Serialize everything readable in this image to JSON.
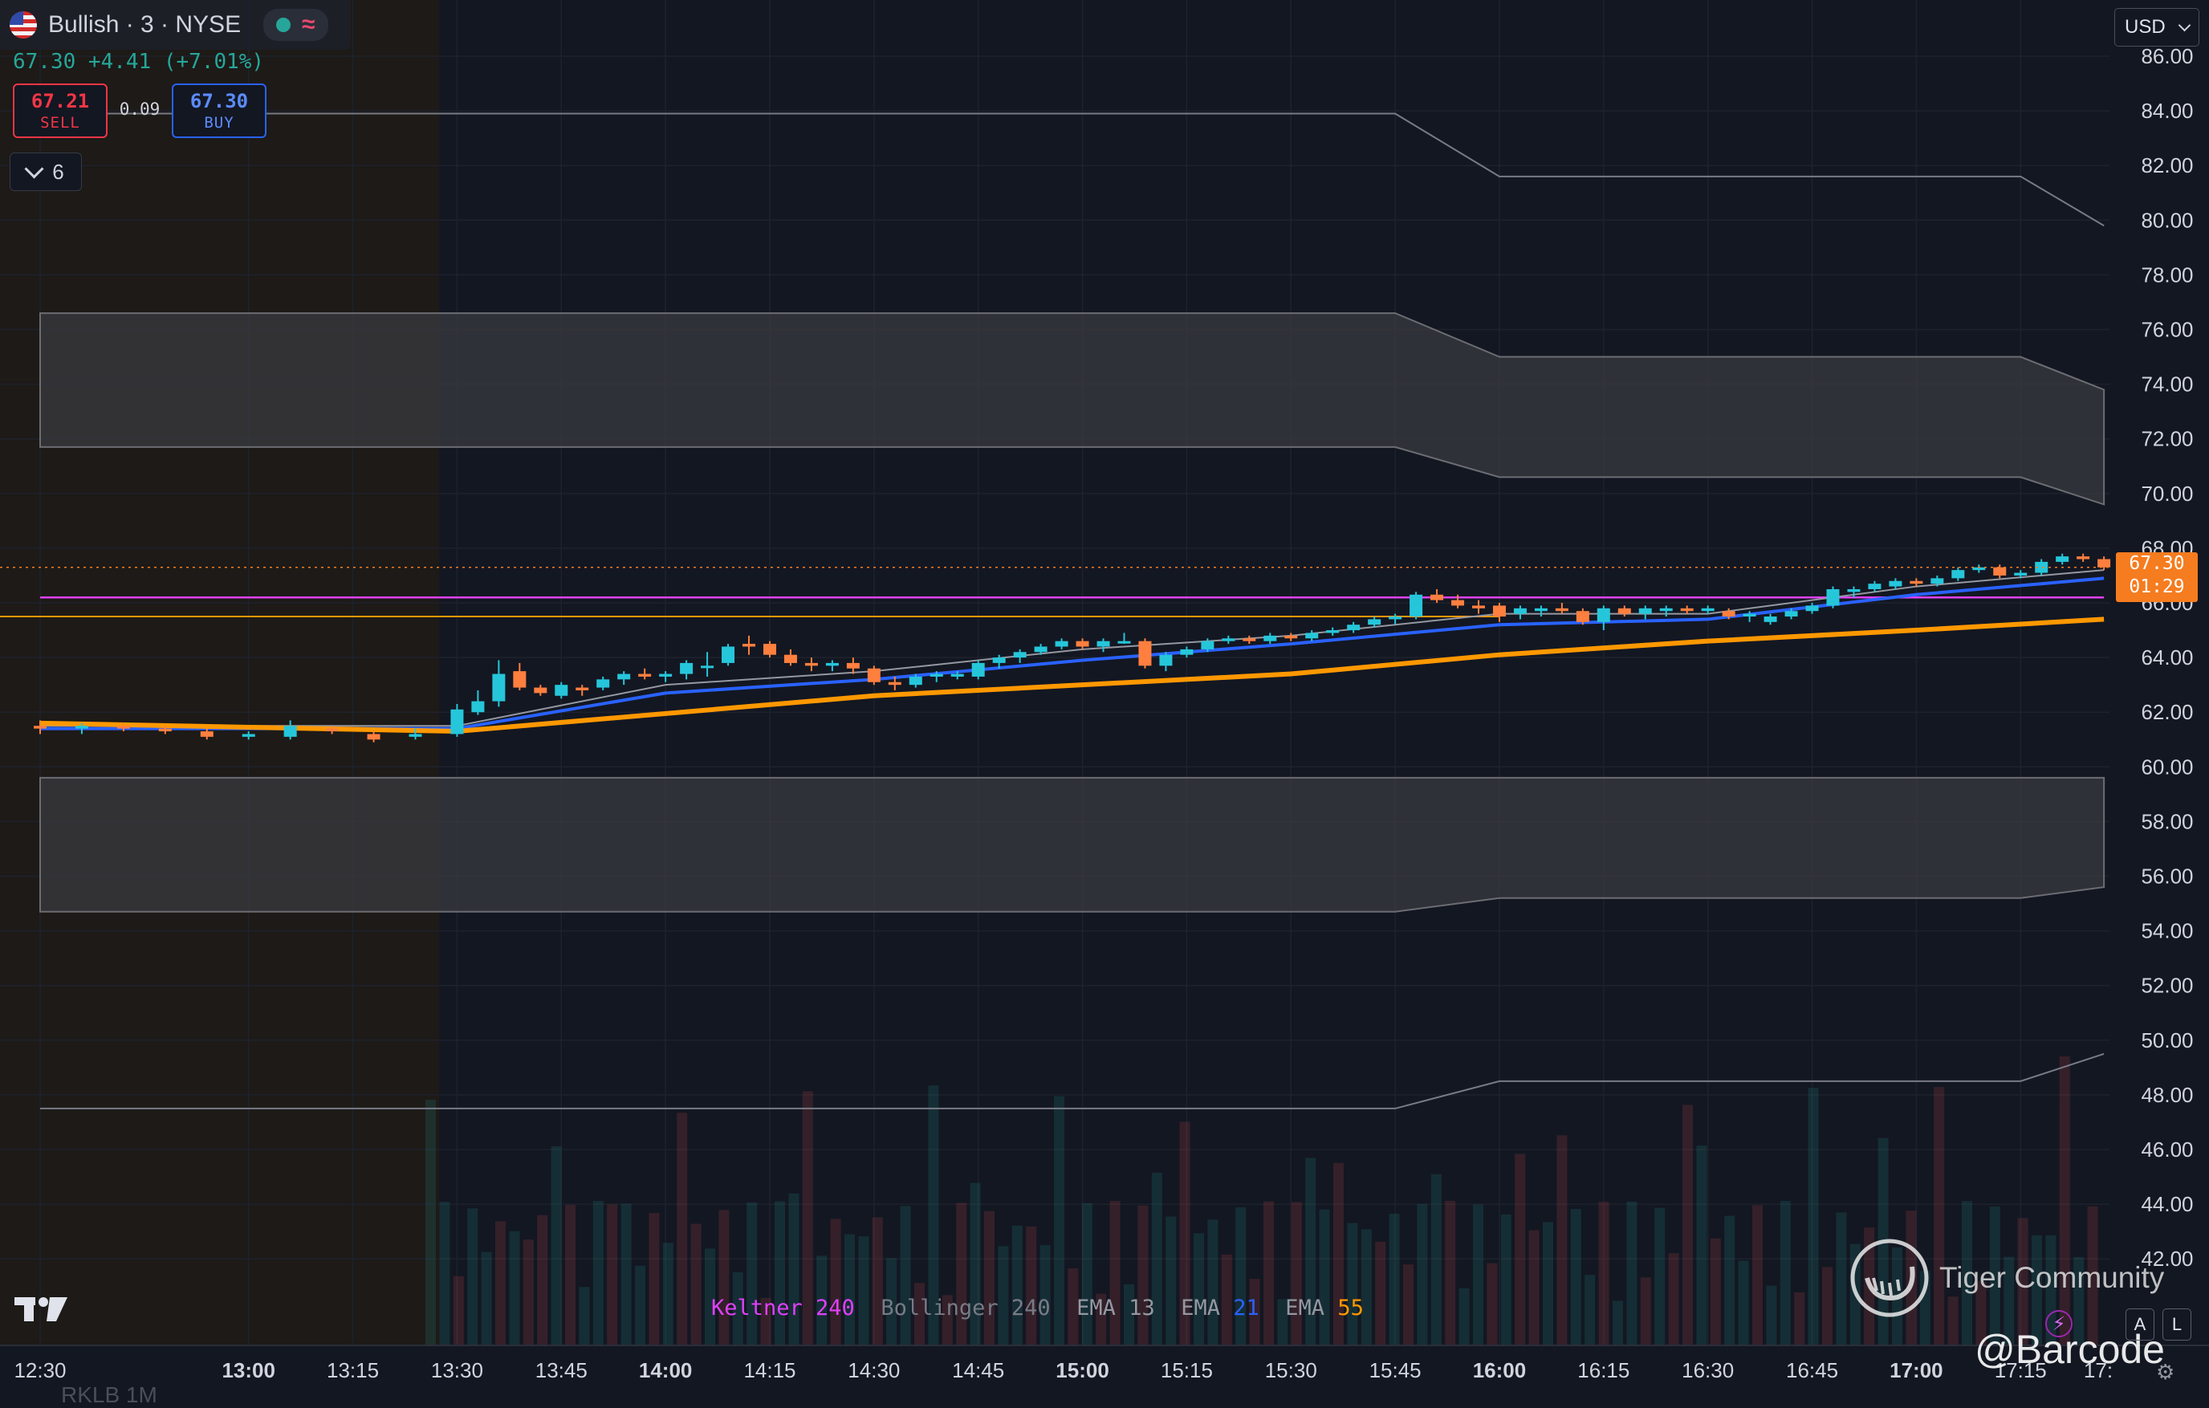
{
  "header": {
    "symbol_title": "Bullish · 3 · NYSE",
    "price_change": "67.30 +4.41 (+7.01%)"
  },
  "trade": {
    "sell_price": "67.21",
    "sell_label": "SELL",
    "spread": "0.09",
    "buy_price": "67.30",
    "buy_label": "BUY"
  },
  "indicators_toggle": {
    "count": "6"
  },
  "currency": {
    "selected": "USD"
  },
  "last_price_badge": {
    "price": "67.30",
    "countdown": "01:29"
  },
  "price_axis_labels": [
    "86.00",
    "84.00",
    "82.00",
    "80.00",
    "78.00",
    "76.00",
    "74.00",
    "72.00",
    "70.00",
    "68.00",
    "66.00",
    "64.00",
    "62.00",
    "60.00",
    "58.00",
    "56.00",
    "54.00",
    "52.00",
    "50.00",
    "48.00",
    "46.00",
    "44.00",
    "42.00"
  ],
  "time_axis_labels": [
    {
      "label": "12:30",
      "bold": false
    },
    {
      "label": "13:00",
      "bold": true
    },
    {
      "label": "13:15",
      "bold": false
    },
    {
      "label": "13:30",
      "bold": false
    },
    {
      "label": "13:45",
      "bold": false
    },
    {
      "label": "14:00",
      "bold": true
    },
    {
      "label": "14:15",
      "bold": false
    },
    {
      "label": "14:30",
      "bold": false
    },
    {
      "label": "14:45",
      "bold": false
    },
    {
      "label": "15:00",
      "bold": true
    },
    {
      "label": "15:15",
      "bold": false
    },
    {
      "label": "15:30",
      "bold": false
    },
    {
      "label": "15:45",
      "bold": false
    },
    {
      "label": "16:00",
      "bold": true
    },
    {
      "label": "16:15",
      "bold": false
    },
    {
      "label": "16:30",
      "bold": false
    },
    {
      "label": "16:45",
      "bold": false
    },
    {
      "label": "17:00",
      "bold": true
    },
    {
      "label": "17:15",
      "bold": false
    },
    {
      "label": "17:",
      "bold": false
    }
  ],
  "legend": [
    {
      "name": "Keltner",
      "param": "240",
      "name_color": "#e040fb",
      "param_color": "#e040fb"
    },
    {
      "name": "Bollinger",
      "param": "240",
      "name_color": "#787b86",
      "param_color": "#787b86"
    },
    {
      "name": "EMA",
      "param": "13",
      "name_color": "#9598a1",
      "param_color": "#9598a1"
    },
    {
      "name": "EMA",
      "param": "21",
      "name_color": "#9598a1",
      "param_color": "#2962ff"
    },
    {
      "name": "EMA",
      "param": "55",
      "name_color": "#9598a1",
      "param_color": "#ff9800"
    }
  ],
  "watermark": {
    "text": "Tiger Community",
    "handle": "@Barcode"
  },
  "bottom_partial_text": "RKLB          1M",
  "icons": {
    "status_indicator": "green-dot",
    "wave": "≈",
    "auto_scale": "A",
    "log_scale": "L",
    "lightning": "⚡",
    "settings": "⚙"
  },
  "colors": {
    "background": "#131722",
    "up": "#26c6da",
    "down": "#ff7f3f",
    "ema13": "#9598a1",
    "ema21": "#2962ff",
    "ema55": "#ff9800",
    "keltner": "#e040fb",
    "bollinger_band": "#3a3b40",
    "accent_price": "#f57c1f"
  },
  "chart_data": {
    "type": "candlestick",
    "interval": "3m",
    "title": "Bullish · 3 · NYSE",
    "y_range": [
      41,
      86.5
    ],
    "x_range": [
      "12:30",
      "17:25"
    ],
    "last_price": 67.3,
    "pre_session_shaded_until": "13:30",
    "candles": [
      {
        "t": "12:30",
        "o": 61.5,
        "h": 61.7,
        "l": 61.2,
        "c": 61.4
      },
      {
        "t": "12:36",
        "o": 61.4,
        "h": 61.6,
        "l": 61.2,
        "c": 61.5
      },
      {
        "t": "12:42",
        "o": 61.5,
        "h": 61.6,
        "l": 61.3,
        "c": 61.4
      },
      {
        "t": "12:48",
        "o": 61.4,
        "h": 61.5,
        "l": 61.2,
        "c": 61.3
      },
      {
        "t": "12:54",
        "o": 61.3,
        "h": 61.4,
        "l": 61.0,
        "c": 61.1
      },
      {
        "t": "13:00",
        "o": 61.1,
        "h": 61.3,
        "l": 61.0,
        "c": 61.2
      },
      {
        "t": "13:06",
        "o": 61.1,
        "h": 61.7,
        "l": 61.0,
        "c": 61.5
      },
      {
        "t": "13:12",
        "o": 61.4,
        "h": 61.5,
        "l": 61.2,
        "c": 61.3
      },
      {
        "t": "13:18",
        "o": 61.2,
        "h": 61.3,
        "l": 60.9,
        "c": 61.0
      },
      {
        "t": "13:24",
        "o": 61.1,
        "h": 61.4,
        "l": 61.0,
        "c": 61.2
      },
      {
        "t": "13:30",
        "o": 61.2,
        "h": 62.3,
        "l": 61.1,
        "c": 62.1
      },
      {
        "t": "13:33",
        "o": 62.0,
        "h": 62.8,
        "l": 61.9,
        "c": 62.4
      },
      {
        "t": "13:36",
        "o": 62.4,
        "h": 63.9,
        "l": 62.2,
        "c": 63.4
      },
      {
        "t": "13:39",
        "o": 63.5,
        "h": 63.8,
        "l": 62.8,
        "c": 62.9
      },
      {
        "t": "13:42",
        "o": 62.9,
        "h": 63.0,
        "l": 62.6,
        "c": 62.7
      },
      {
        "t": "13:45",
        "o": 62.6,
        "h": 63.1,
        "l": 62.5,
        "c": 63.0
      },
      {
        "t": "13:48",
        "o": 62.9,
        "h": 63.0,
        "l": 62.6,
        "c": 62.8
      },
      {
        "t": "13:51",
        "o": 62.9,
        "h": 63.3,
        "l": 62.8,
        "c": 63.2
      },
      {
        "t": "13:54",
        "o": 63.2,
        "h": 63.5,
        "l": 63.0,
        "c": 63.4
      },
      {
        "t": "13:57",
        "o": 63.4,
        "h": 63.6,
        "l": 63.2,
        "c": 63.3
      },
      {
        "t": "14:00",
        "o": 63.3,
        "h": 63.5,
        "l": 63.1,
        "c": 63.4
      },
      {
        "t": "14:03",
        "o": 63.4,
        "h": 63.9,
        "l": 63.2,
        "c": 63.8
      },
      {
        "t": "14:06",
        "o": 63.7,
        "h": 64.2,
        "l": 63.3,
        "c": 63.7
      },
      {
        "t": "14:09",
        "o": 63.8,
        "h": 64.5,
        "l": 63.7,
        "c": 64.4
      },
      {
        "t": "14:12",
        "o": 64.5,
        "h": 64.8,
        "l": 64.1,
        "c": 64.4
      },
      {
        "t": "14:15",
        "o": 64.5,
        "h": 64.6,
        "l": 64.0,
        "c": 64.1
      },
      {
        "t": "14:18",
        "o": 64.1,
        "h": 64.3,
        "l": 63.7,
        "c": 63.8
      },
      {
        "t": "14:21",
        "o": 63.8,
        "h": 64.0,
        "l": 63.5,
        "c": 63.7
      },
      {
        "t": "14:24",
        "o": 63.7,
        "h": 63.9,
        "l": 63.5,
        "c": 63.8
      },
      {
        "t": "14:27",
        "o": 63.8,
        "h": 64.0,
        "l": 63.4,
        "c": 63.6
      },
      {
        "t": "14:30",
        "o": 63.6,
        "h": 63.7,
        "l": 63.0,
        "c": 63.1
      },
      {
        "t": "14:33",
        "o": 63.1,
        "h": 63.3,
        "l": 62.8,
        "c": 63.0
      },
      {
        "t": "14:36",
        "o": 63.0,
        "h": 63.4,
        "l": 62.9,
        "c": 63.3
      },
      {
        "t": "14:39",
        "o": 63.3,
        "h": 63.5,
        "l": 63.1,
        "c": 63.4
      },
      {
        "t": "14:42",
        "o": 63.3,
        "h": 63.5,
        "l": 63.2,
        "c": 63.4
      },
      {
        "t": "14:45",
        "o": 63.3,
        "h": 63.9,
        "l": 63.2,
        "c": 63.8
      },
      {
        "t": "14:48",
        "o": 63.8,
        "h": 64.1,
        "l": 63.6,
        "c": 64.0
      },
      {
        "t": "14:51",
        "o": 64.0,
        "h": 64.3,
        "l": 63.8,
        "c": 64.2
      },
      {
        "t": "14:54",
        "o": 64.2,
        "h": 64.5,
        "l": 64.1,
        "c": 64.4
      },
      {
        "t": "14:57",
        "o": 64.4,
        "h": 64.7,
        "l": 64.3,
        "c": 64.6
      },
      {
        "t": "15:00",
        "o": 64.6,
        "h": 64.7,
        "l": 64.3,
        "c": 64.4
      },
      {
        "t": "15:03",
        "o": 64.4,
        "h": 64.7,
        "l": 64.2,
        "c": 64.6
      },
      {
        "t": "15:06",
        "o": 64.6,
        "h": 64.9,
        "l": 64.5,
        "c": 64.6
      },
      {
        "t": "15:09",
        "o": 64.6,
        "h": 64.7,
        "l": 63.6,
        "c": 63.7
      },
      {
        "t": "15:12",
        "o": 63.7,
        "h": 64.2,
        "l": 63.5,
        "c": 64.1
      },
      {
        "t": "15:15",
        "o": 64.1,
        "h": 64.4,
        "l": 64.0,
        "c": 64.3
      },
      {
        "t": "15:18",
        "o": 64.3,
        "h": 64.7,
        "l": 64.2,
        "c": 64.6
      },
      {
        "t": "15:21",
        "o": 64.6,
        "h": 64.8,
        "l": 64.5,
        "c": 64.7
      },
      {
        "t": "15:24",
        "o": 64.7,
        "h": 64.8,
        "l": 64.5,
        "c": 64.6
      },
      {
        "t": "15:27",
        "o": 64.6,
        "h": 64.9,
        "l": 64.5,
        "c": 64.8
      },
      {
        "t": "15:30",
        "o": 64.8,
        "h": 64.9,
        "l": 64.6,
        "c": 64.7
      },
      {
        "t": "15:33",
        "o": 64.7,
        "h": 65.0,
        "l": 64.6,
        "c": 64.9
      },
      {
        "t": "15:36",
        "o": 64.9,
        "h": 65.1,
        "l": 64.8,
        "c": 65.0
      },
      {
        "t": "15:39",
        "o": 65.0,
        "h": 65.3,
        "l": 64.9,
        "c": 65.2
      },
      {
        "t": "15:42",
        "o": 65.2,
        "h": 65.5,
        "l": 65.1,
        "c": 65.4
      },
      {
        "t": "15:45",
        "o": 65.4,
        "h": 65.6,
        "l": 65.2,
        "c": 65.5
      },
      {
        "t": "15:48",
        "o": 65.5,
        "h": 66.4,
        "l": 65.4,
        "c": 66.3
      },
      {
        "t": "15:51",
        "o": 66.3,
        "h": 66.5,
        "l": 66.0,
        "c": 66.1
      },
      {
        "t": "15:54",
        "o": 66.1,
        "h": 66.3,
        "l": 65.8,
        "c": 65.9
      },
      {
        "t": "15:57",
        "o": 65.9,
        "h": 66.1,
        "l": 65.6,
        "c": 65.8
      },
      {
        "t": "16:00",
        "o": 65.9,
        "h": 66.0,
        "l": 65.3,
        "c": 65.5
      },
      {
        "t": "16:03",
        "o": 65.6,
        "h": 65.9,
        "l": 65.4,
        "c": 65.8
      },
      {
        "t": "16:06",
        "o": 65.7,
        "h": 65.9,
        "l": 65.5,
        "c": 65.8
      },
      {
        "t": "16:09",
        "o": 65.8,
        "h": 66.0,
        "l": 65.6,
        "c": 65.7
      },
      {
        "t": "16:12",
        "o": 65.7,
        "h": 65.8,
        "l": 65.2,
        "c": 65.3
      },
      {
        "t": "16:15",
        "o": 65.3,
        "h": 65.9,
        "l": 65.0,
        "c": 65.8
      },
      {
        "t": "16:18",
        "o": 65.8,
        "h": 65.9,
        "l": 65.5,
        "c": 65.6
      },
      {
        "t": "16:21",
        "o": 65.6,
        "h": 65.9,
        "l": 65.4,
        "c": 65.8
      },
      {
        "t": "16:24",
        "o": 65.7,
        "h": 65.9,
        "l": 65.5,
        "c": 65.8
      },
      {
        "t": "16:27",
        "o": 65.8,
        "h": 65.9,
        "l": 65.6,
        "c": 65.7
      },
      {
        "t": "16:30",
        "o": 65.7,
        "h": 65.9,
        "l": 65.6,
        "c": 65.8
      },
      {
        "t": "16:33",
        "o": 65.7,
        "h": 65.8,
        "l": 65.4,
        "c": 65.5
      },
      {
        "t": "16:36",
        "o": 65.5,
        "h": 65.7,
        "l": 65.3,
        "c": 65.6
      },
      {
        "t": "16:39",
        "o": 65.3,
        "h": 65.6,
        "l": 65.2,
        "c": 65.5
      },
      {
        "t": "16:42",
        "o": 65.5,
        "h": 65.8,
        "l": 65.4,
        "c": 65.7
      },
      {
        "t": "16:45",
        "o": 65.7,
        "h": 66.0,
        "l": 65.6,
        "c": 65.9
      },
      {
        "t": "16:48",
        "o": 65.9,
        "h": 66.6,
        "l": 65.8,
        "c": 66.5
      },
      {
        "t": "16:51",
        "o": 66.4,
        "h": 66.6,
        "l": 66.2,
        "c": 66.5
      },
      {
        "t": "16:54",
        "o": 66.5,
        "h": 66.8,
        "l": 66.4,
        "c": 66.7
      },
      {
        "t": "16:57",
        "o": 66.6,
        "h": 66.9,
        "l": 66.5,
        "c": 66.8
      },
      {
        "t": "17:00",
        "o": 66.8,
        "h": 66.9,
        "l": 66.6,
        "c": 66.7
      },
      {
        "t": "17:03",
        "o": 66.7,
        "h": 67.0,
        "l": 66.6,
        "c": 66.9
      },
      {
        "t": "17:06",
        "o": 66.9,
        "h": 67.3,
        "l": 66.8,
        "c": 67.2
      },
      {
        "t": "17:09",
        "o": 67.2,
        "h": 67.4,
        "l": 67.1,
        "c": 67.3
      },
      {
        "t": "17:12",
        "o": 67.3,
        "h": 67.4,
        "l": 66.9,
        "c": 67.0
      },
      {
        "t": "17:15",
        "o": 67.0,
        "h": 67.2,
        "l": 66.9,
        "c": 67.1
      },
      {
        "t": "17:18",
        "o": 67.1,
        "h": 67.6,
        "l": 67.0,
        "c": 67.5
      },
      {
        "t": "17:21",
        "o": 67.5,
        "h": 67.8,
        "l": 67.4,
        "c": 67.7
      },
      {
        "t": "17:24",
        "o": 67.7,
        "h": 67.8,
        "l": 67.5,
        "c": 67.6
      },
      {
        "t": "17:27",
        "o": 67.6,
        "h": 67.7,
        "l": 67.2,
        "c": 67.3
      }
    ],
    "ema55": [
      {
        "t": "12:30",
        "v": 61.6
      },
      {
        "t": "13:30",
        "v": 61.3
      },
      {
        "t": "14:30",
        "v": 62.6
      },
      {
        "t": "15:30",
        "v": 63.4
      },
      {
        "t": "16:00",
        "v": 64.1
      },
      {
        "t": "16:30",
        "v": 64.6
      },
      {
        "t": "17:00",
        "v": 65.0
      },
      {
        "t": "17:27",
        "v": 65.4
      }
    ],
    "ema21": [
      {
        "t": "12:30",
        "v": 61.4
      },
      {
        "t": "13:30",
        "v": 61.4
      },
      {
        "t": "14:00",
        "v": 62.7
      },
      {
        "t": "14:30",
        "v": 63.2
      },
      {
        "t": "15:00",
        "v": 63.9
      },
      {
        "t": "15:30",
        "v": 64.5
      },
      {
        "t": "16:00",
        "v": 65.2
      },
      {
        "t": "16:30",
        "v": 65.4
      },
      {
        "t": "17:00",
        "v": 66.3
      },
      {
        "t": "17:27",
        "v": 66.9
      }
    ],
    "ema13": [
      {
        "t": "12:30",
        "v": 61.5
      },
      {
        "t": "13:30",
        "v": 61.5
      },
      {
        "t": "14:00",
        "v": 63.0
      },
      {
        "t": "14:30",
        "v": 63.5
      },
      {
        "t": "15:00",
        "v": 64.3
      },
      {
        "t": "15:30",
        "v": 64.8
      },
      {
        "t": "16:00",
        "v": 65.6
      },
      {
        "t": "16:30",
        "v": 65.6
      },
      {
        "t": "17:00",
        "v": 66.6
      },
      {
        "t": "17:27",
        "v": 67.2
      }
    ],
    "keltner_line": [
      {
        "t": "12:30",
        "v": 66.2
      },
      {
        "t": "15:45",
        "v": 66.2
      },
      {
        "t": "16:00",
        "v": 66.2
      },
      {
        "t": "17:27",
        "v": 66.2
      }
    ],
    "orange_flat_line": 65.5,
    "bollinger_outer_upper": [
      {
        "t": "12:30",
        "v": 83.9
      },
      {
        "t": "15:45",
        "v": 83.9
      },
      {
        "t": "16:00",
        "v": 81.6
      },
      {
        "t": "17:15",
        "v": 81.6
      },
      {
        "t": "17:27",
        "v": 79.8
      }
    ],
    "bollinger_band_upper": {
      "top": [
        {
          "t": "12:30",
          "v": 76.6
        },
        {
          "t": "15:45",
          "v": 76.6
        },
        {
          "t": "16:00",
          "v": 75.0
        },
        {
          "t": "17:15",
          "v": 75.0
        },
        {
          "t": "17:27",
          "v": 73.8
        }
      ],
      "bottom": [
        {
          "t": "12:30",
          "v": 71.7
        },
        {
          "t": "15:45",
          "v": 71.7
        },
        {
          "t": "16:00",
          "v": 70.6
        },
        {
          "t": "17:15",
          "v": 70.6
        },
        {
          "t": "17:27",
          "v": 69.6
        }
      ]
    },
    "bollinger_band_lower": {
      "top": [
        {
          "t": "12:30",
          "v": 59.6
        },
        {
          "t": "17:27",
          "v": 59.6
        }
      ],
      "bottom": [
        {
          "t": "12:30",
          "v": 54.7
        },
        {
          "t": "15:45",
          "v": 54.7
        },
        {
          "t": "16:00",
          "v": 55.2
        },
        {
          "t": "17:15",
          "v": 55.2
        },
        {
          "t": "17:27",
          "v": 55.6
        }
      ]
    },
    "bollinger_outer_lower": [
      {
        "t": "12:30",
        "v": 47.5
      },
      {
        "t": "15:45",
        "v": 47.5
      },
      {
        "t": "16:00",
        "v": 48.5
      },
      {
        "t": "17:15",
        "v": 48.5
      },
      {
        "t": "17:27",
        "v": 49.5
      }
    ]
  }
}
